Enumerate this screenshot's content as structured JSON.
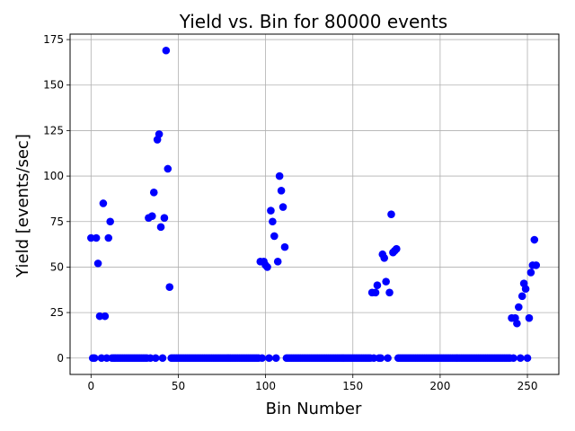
{
  "chart_data": {
    "type": "scatter",
    "title": "Yield vs. Bin for 80000 events",
    "xlabel": "Bin Number",
    "ylabel": "Yield [events/sec]",
    "xlim": [
      -12,
      268
    ],
    "ylim": [
      -9,
      178
    ],
    "xticks": [
      0,
      50,
      100,
      150,
      200,
      250
    ],
    "yticks": [
      0,
      25,
      50,
      75,
      100,
      125,
      150,
      175
    ],
    "grid": true,
    "marker_color": "#0000ff",
    "points": [
      [
        0,
        66
      ],
      [
        1,
        0
      ],
      [
        2,
        0
      ],
      [
        3,
        66
      ],
      [
        4,
        52
      ],
      [
        5,
        23
      ],
      [
        6,
        0
      ],
      [
        7,
        85
      ],
      [
        8,
        23
      ],
      [
        9,
        0
      ],
      [
        10,
        66
      ],
      [
        11,
        75
      ],
      [
        33,
        77
      ],
      [
        35,
        78
      ],
      [
        36,
        91
      ],
      [
        37,
        0
      ],
      [
        38,
        120
      ],
      [
        39,
        123
      ],
      [
        40,
        72
      ],
      [
        41,
        0
      ],
      [
        42,
        77
      ],
      [
        43,
        169
      ],
      [
        44,
        104
      ],
      [
        45,
        39
      ],
      [
        97,
        53
      ],
      [
        99,
        53
      ],
      [
        100,
        51
      ],
      [
        101,
        50
      ],
      [
        102,
        0
      ],
      [
        103,
        81
      ],
      [
        104,
        75
      ],
      [
        105,
        67
      ],
      [
        106,
        0
      ],
      [
        107,
        53
      ],
      [
        108,
        100
      ],
      [
        109,
        92
      ],
      [
        110,
        83
      ],
      [
        111,
        61
      ],
      [
        161,
        36
      ],
      [
        163,
        36
      ],
      [
        164,
        40
      ],
      [
        165,
        0
      ],
      [
        167,
        57
      ],
      [
        168,
        55
      ],
      [
        169,
        42
      ],
      [
        170,
        0
      ],
      [
        171,
        36
      ],
      [
        172,
        79
      ],
      [
        173,
        58
      ],
      [
        174,
        59
      ],
      [
        175,
        60
      ],
      [
        241,
        22
      ],
      [
        243,
        22
      ],
      [
        244,
        19
      ],
      [
        245,
        28
      ],
      [
        246,
        0
      ],
      [
        247,
        34
      ],
      [
        248,
        41
      ],
      [
        249,
        38
      ],
      [
        250,
        0
      ],
      [
        251,
        22
      ],
      [
        252,
        47
      ],
      [
        253,
        51
      ],
      [
        254,
        65
      ],
      [
        255,
        51
      ]
    ],
    "zero_range": [
      0,
      255
    ]
  }
}
